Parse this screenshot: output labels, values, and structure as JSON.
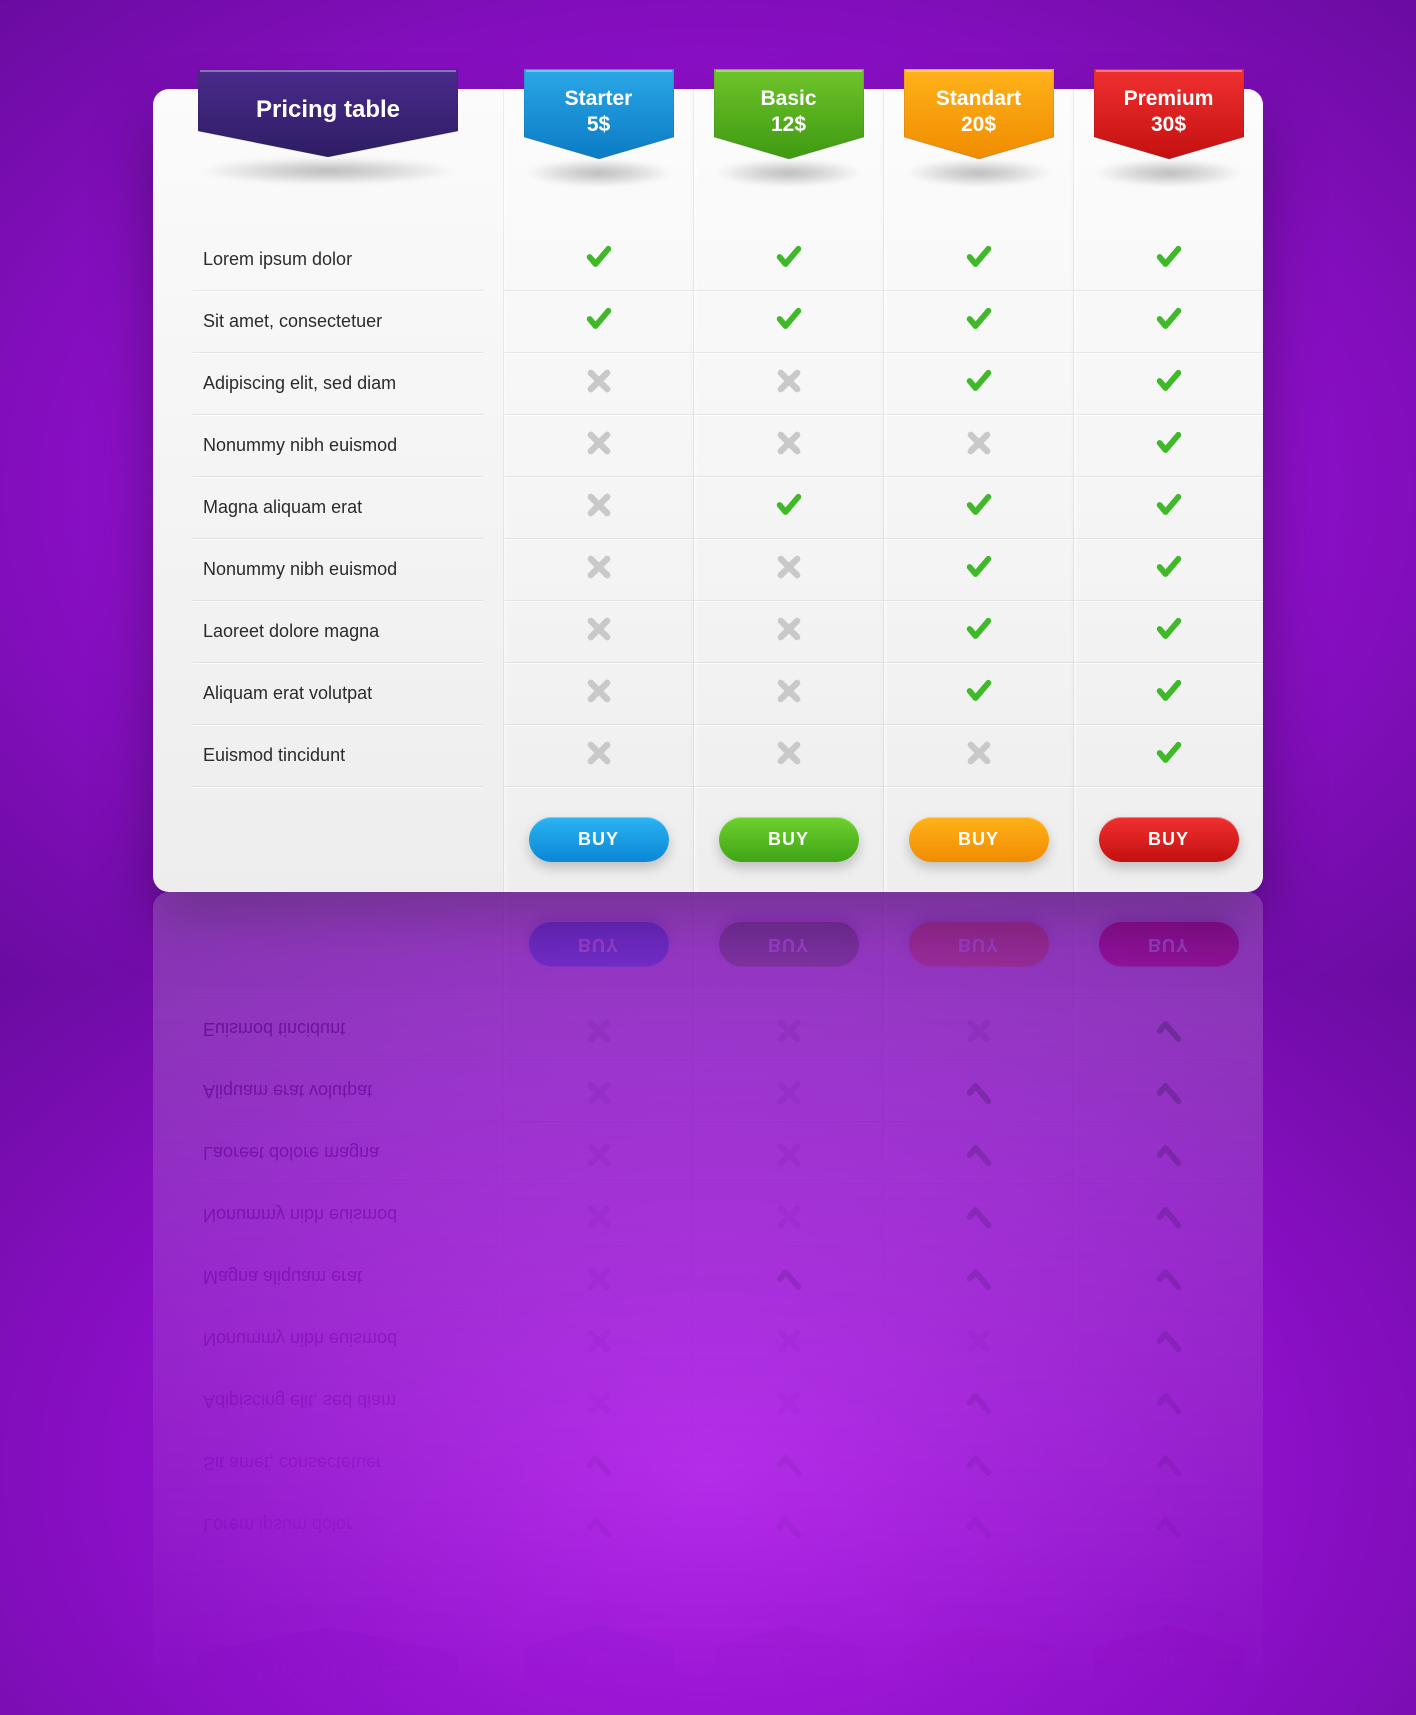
{
  "type": "pricing-table",
  "background": {
    "gradient_center": "#b020e8",
    "gradient_mid": "#8a0fc5",
    "gradient_edge": "#6a0ba0"
  },
  "card": {
    "bg_top": "#fbfbfb",
    "bg_bottom": "#ededed",
    "border_radius": 16,
    "divider_color": "rgba(0,0,0,0.07)"
  },
  "icons": {
    "check_color": "#3fb92a",
    "cross_color": "#c9c9c9"
  },
  "title": {
    "label": "Pricing table",
    "ribbon_top": "#4a2b8c",
    "ribbon_bottom": "#2e1d63",
    "fontsize": 24
  },
  "features": [
    "Lorem ipsum dolor",
    "Sit amet, consectetuer",
    "Adipiscing elit, sed diam",
    "Nonummy nibh euismod",
    "Magna aliquam erat",
    "Nonummy nibh euismod",
    "Laoreet dolore magna",
    "Aliquam erat volutpat",
    "Euismod tincidunt"
  ],
  "feature_fontsize": 18,
  "feature_color": "#2b2b2b",
  "plans": [
    {
      "name": "Starter",
      "price": "5$",
      "ribbon_top": "#2aa7e6",
      "ribbon_bottom": "#0b7bc4",
      "button_top": "#2bb4f2",
      "button_bottom": "#0b87d6",
      "buy_label": "BUY",
      "values": [
        true,
        true,
        false,
        false,
        false,
        false,
        false,
        false,
        false
      ]
    },
    {
      "name": "Basic",
      "price": "12$",
      "ribbon_top": "#6fc42a",
      "ribbon_bottom": "#3f9a12",
      "button_top": "#6fd12e",
      "button_bottom": "#3ea516",
      "buy_label": "BUY",
      "values": [
        true,
        true,
        false,
        false,
        true,
        false,
        false,
        false,
        false
      ]
    },
    {
      "name": "Standart",
      "price": "20$",
      "ribbon_top": "#ffb21a",
      "ribbon_bottom": "#f08c00",
      "button_top": "#ffb21a",
      "button_bottom": "#f08c00",
      "buy_label": "BUY",
      "values": [
        true,
        true,
        true,
        false,
        true,
        true,
        true,
        true,
        false
      ]
    },
    {
      "name": "Premium",
      "price": "30$",
      "ribbon_top": "#f03030",
      "ribbon_bottom": "#c41010",
      "button_top": "#f03030",
      "button_bottom": "#c41010",
      "buy_label": "BUY",
      "values": [
        true,
        true,
        true,
        true,
        true,
        true,
        true,
        true,
        true
      ]
    }
  ],
  "plan_name_fontsize": 21,
  "buy_fontsize": 18
}
